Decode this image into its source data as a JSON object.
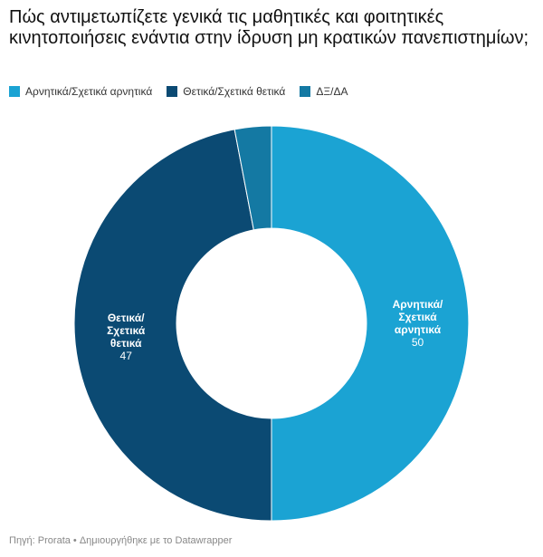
{
  "chart_data": {
    "type": "donut",
    "title": "Πώς αντιμετωπίζετε γενικά τις μαθητικές και φοιτητικές κινητοποιήσεις ενάντια στην ίδρυση μη κρατικών πανεπιστημίων;",
    "categories": [
      "Αρνητικά/Σχετικά αρνητικά",
      "Θετικά/Σχετικά θετικά",
      "ΔΞ/ΔΑ"
    ],
    "values": [
      50,
      47,
      3
    ],
    "colors": [
      "#1ba3d3",
      "#0b4a73",
      "#1479a3"
    ],
    "labeled": [
      true,
      true,
      false
    ],
    "source": "Πηγή: Prorata • Δημιουργήθηκε με το Datawrapper"
  }
}
